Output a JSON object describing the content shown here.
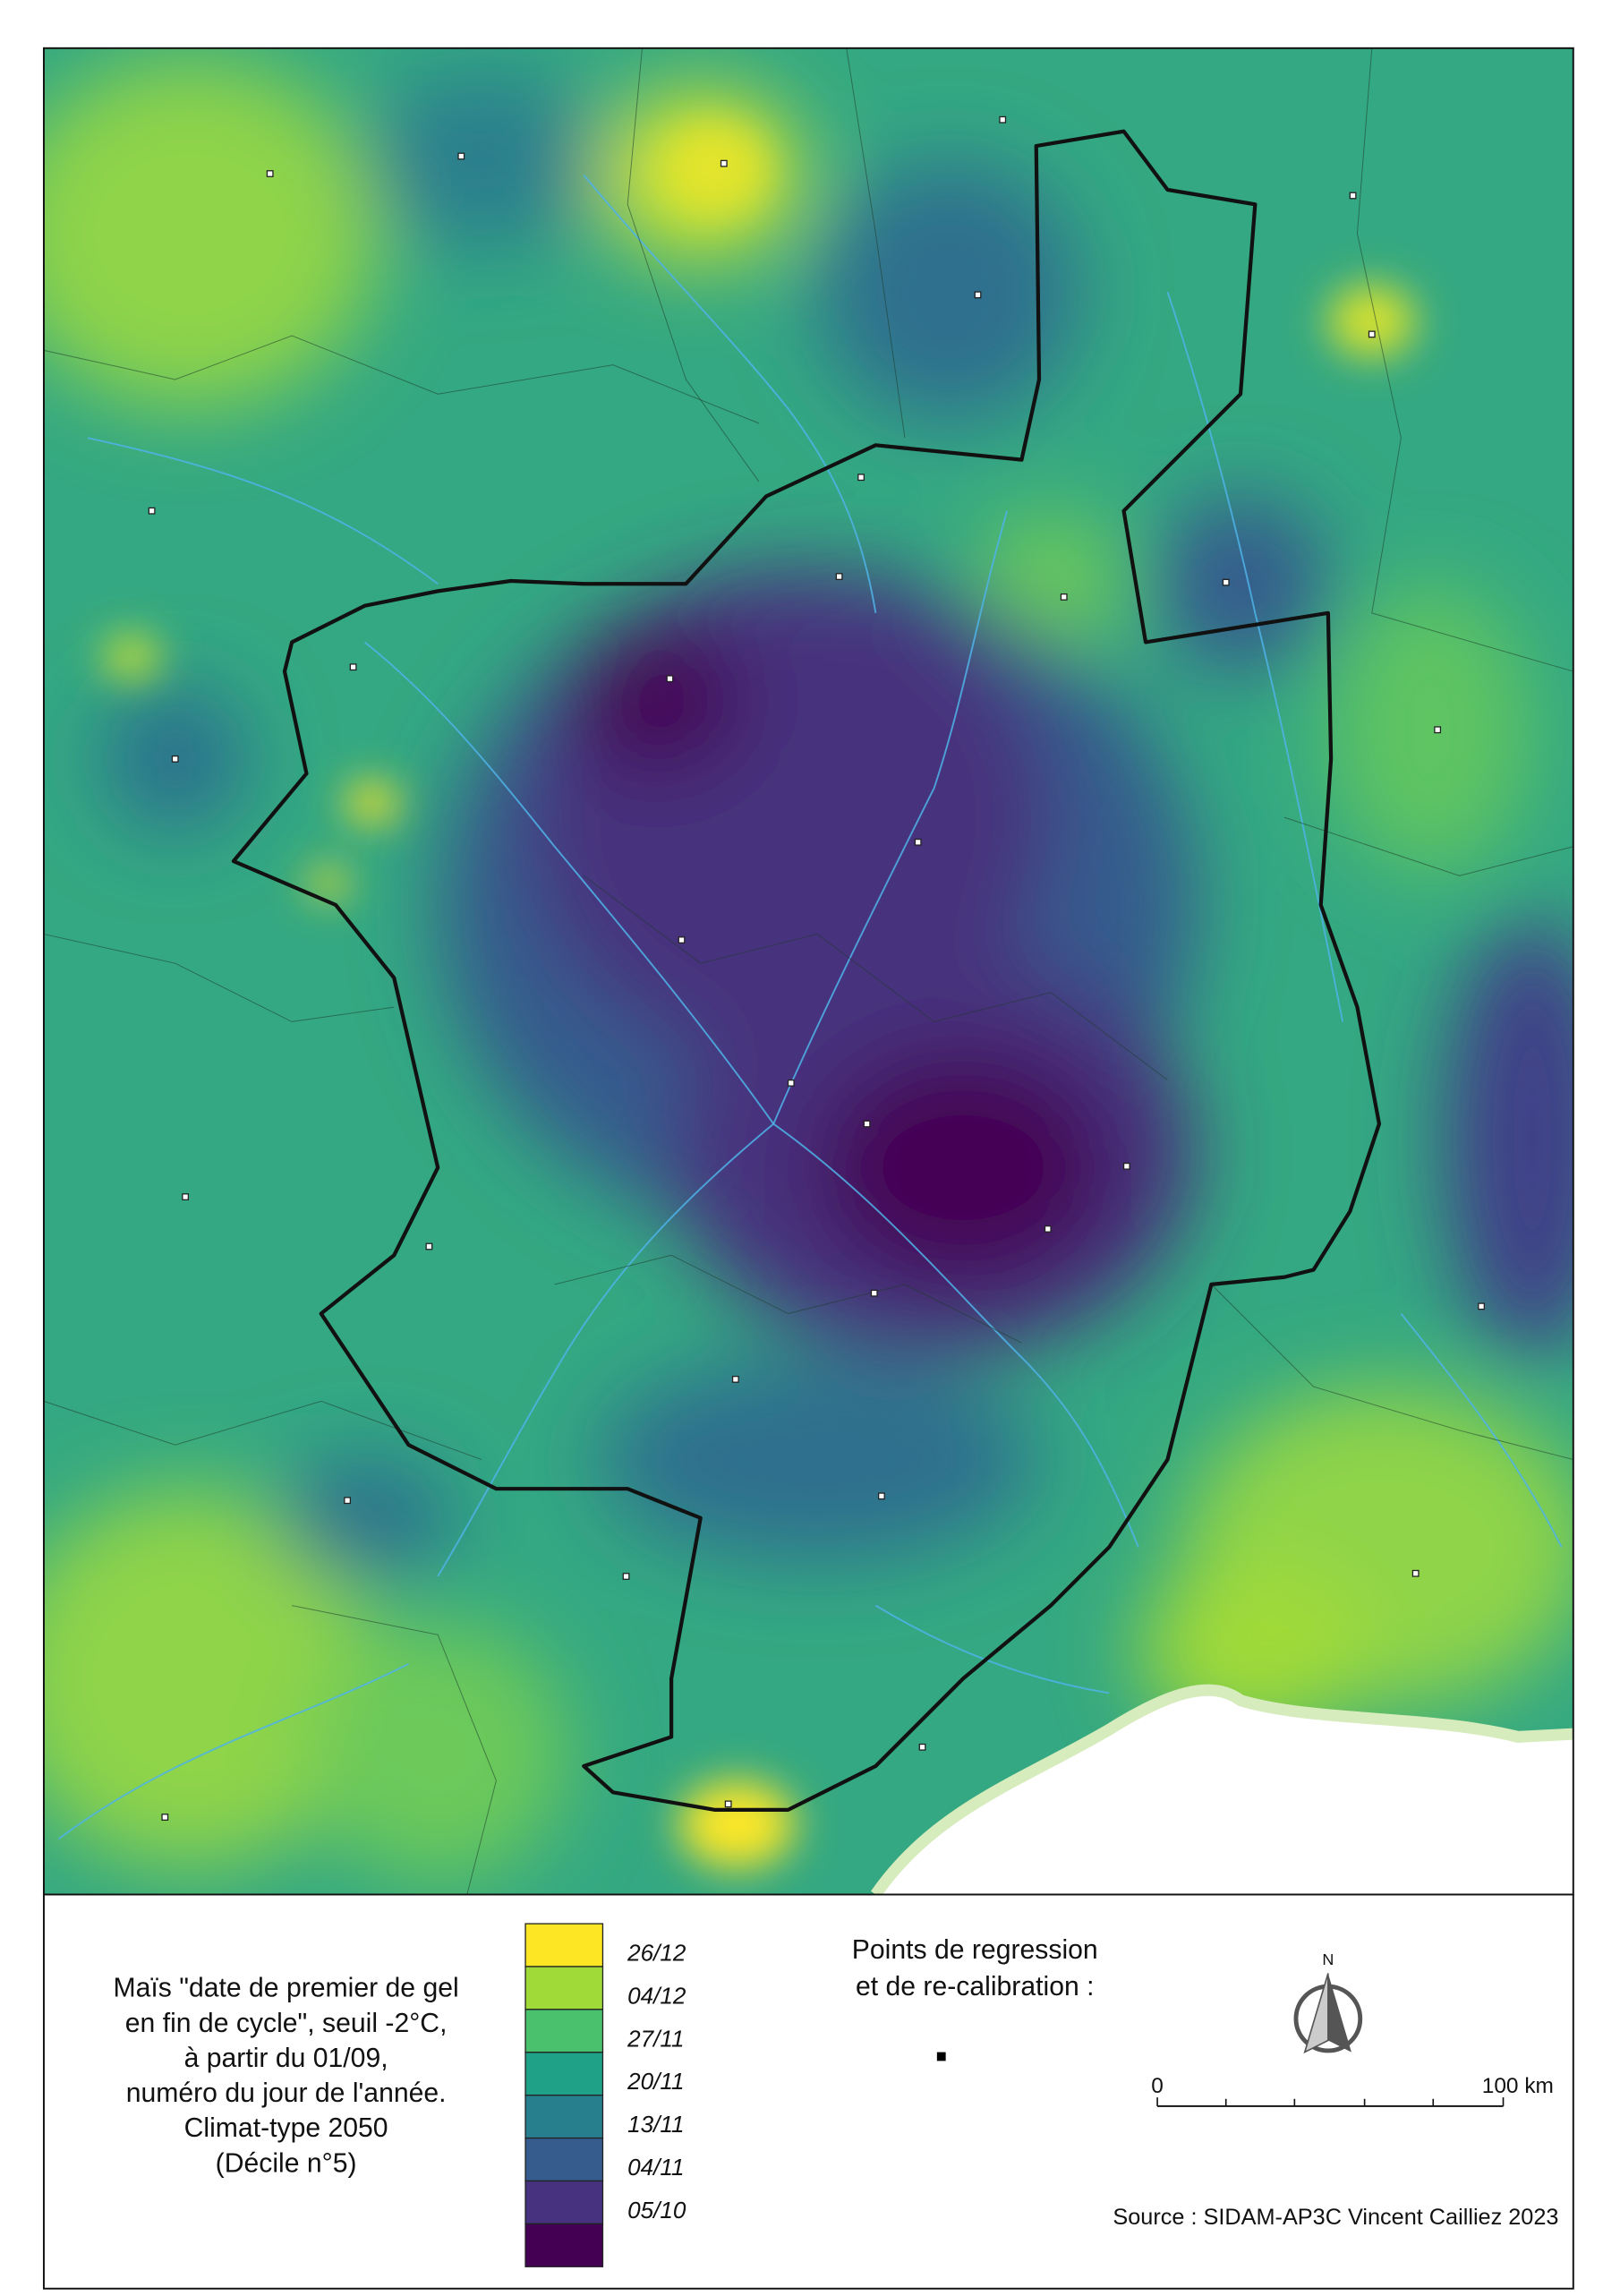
{
  "legend": {
    "title": [
      "Maïs \"date de premier de gel",
      "en fin de cycle\", seuil -2°C,",
      "à partir du 01/09,",
      "numéro du jour de l'année.",
      "Climat-type 2050",
      "(Décile n°5)"
    ],
    "swatch_colors": [
      "#fde725",
      "#a0da39",
      "#4ac16d",
      "#1fa187",
      "#277f8e",
      "#365c8d",
      "#46327e",
      "#440154"
    ],
    "breaks": [
      "26/12",
      "04/12",
      "27/11",
      "20/11",
      "13/11",
      "04/11",
      "05/10"
    ]
  },
  "points_legend": {
    "title": [
      "Points de regression",
      "et de re-calibration :"
    ]
  },
  "north_arrow": {
    "label": "N"
  },
  "scale_bar": {
    "labels": [
      "0",
      "100 km"
    ]
  },
  "source": "Source : SIDAM-AP3C Vincent Cailliez 2023"
}
